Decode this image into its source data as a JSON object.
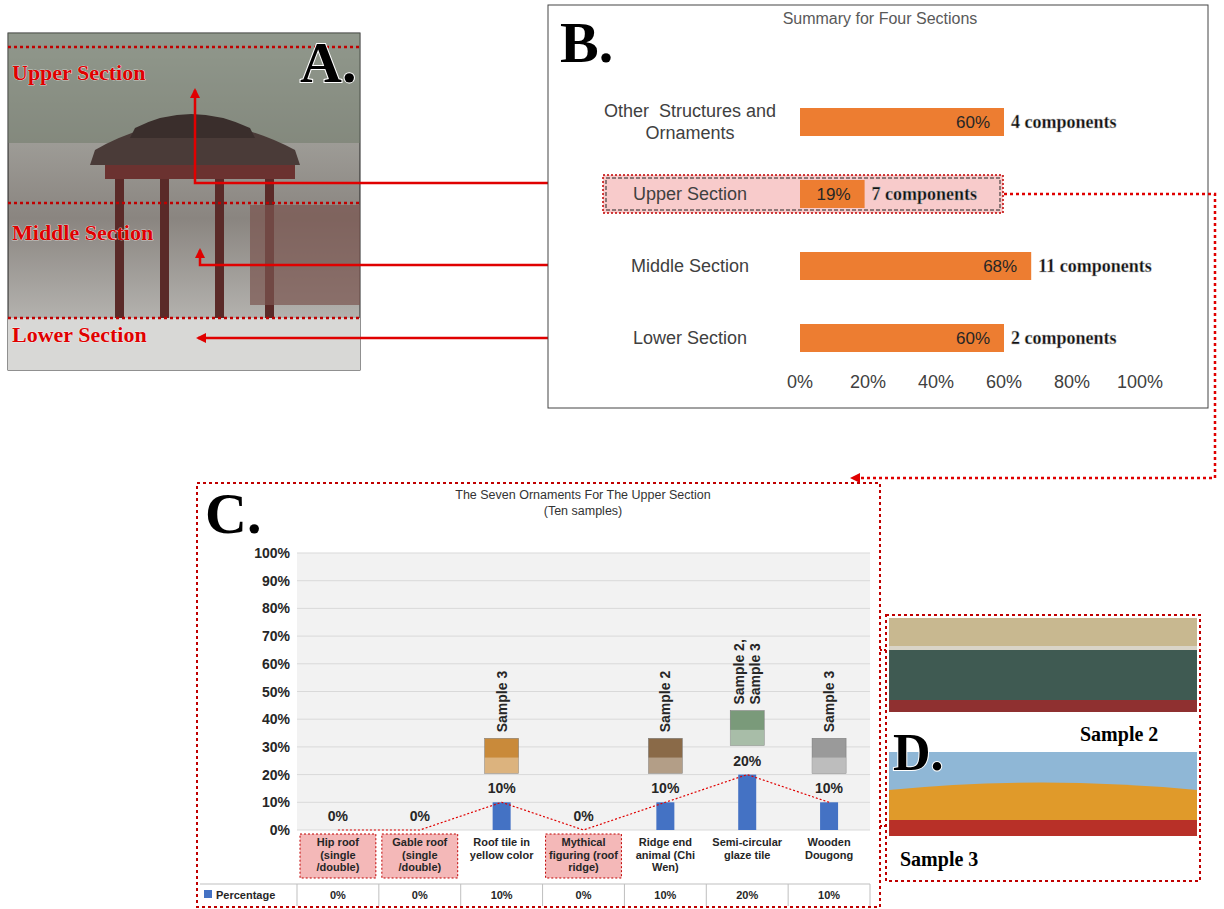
{
  "panel_letters": [
    "A.",
    "B.",
    "C.",
    "D."
  ],
  "photo_a": {
    "labels": [
      "Upper Section",
      "Middle Section",
      "Lower Section"
    ]
  },
  "photo_d": {
    "labels": [
      "Sample 2",
      "Sample 3"
    ]
  },
  "chart_data": [
    {
      "type": "bar",
      "orientation": "horizontal",
      "title": "Summary for Four Sections",
      "categories": [
        "Other  Structures and Ornaments",
        "Upper Section",
        "Middle Section",
        "Lower Section"
      ],
      "values": [
        60,
        19,
        68,
        60
      ],
      "value_labels": [
        "60%",
        "19%",
        "68%",
        "60%"
      ],
      "annotations": [
        "4 components",
        "7 components",
        "11 components",
        "2 components"
      ],
      "color": "#ed7d31",
      "xlim": [
        0,
        100
      ],
      "xticks": [
        {
          "value": 0,
          "label": "0%"
        },
        {
          "value": 20,
          "label": "20%"
        },
        {
          "value": 40,
          "label": "40%"
        },
        {
          "value": 60,
          "label": "60%"
        },
        {
          "value": 80,
          "label": "80%"
        },
        {
          "value": 100,
          "label": "100%"
        }
      ],
      "grid": false,
      "data_labels": true
    },
    {
      "type": "bar",
      "title": "The Seven Ornaments For The Upper Section",
      "subtitle": "(Ten samples)",
      "categories": [
        "Hip roof (single /double)",
        "Gable roof (single /double)",
        "Roof tile in yellow color",
        "Mythical figuring (roof ridge)",
        "Ridge end animal (Chi Wen)",
        "Semi-circular glaze tile",
        "Wooden Dougong"
      ],
      "series": [
        {
          "name": "Percentage",
          "color": "#4472c4",
          "values": [
            0,
            0,
            10,
            0,
            10,
            20,
            10
          ],
          "value_labels": [
            "0%",
            "0%",
            "10%",
            "0%",
            "10%",
            "20%",
            "10%"
          ]
        }
      ],
      "annotations": [
        null,
        null,
        "Sample 3",
        null,
        "Sample 2",
        "Sample 2, Sample 3",
        "Sample 3"
      ],
      "ylim": [
        0,
        100
      ],
      "yticks": [
        {
          "value": 0,
          "label": "0%"
        },
        {
          "value": 10,
          "label": "10%"
        },
        {
          "value": 20,
          "label": "20%"
        },
        {
          "value": 30,
          "label": "30%"
        },
        {
          "value": 40,
          "label": "40%"
        },
        {
          "value": 50,
          "label": "50%"
        },
        {
          "value": 60,
          "label": "60%"
        },
        {
          "value": 70,
          "label": "70%"
        },
        {
          "value": 80,
          "label": "80%"
        },
        {
          "value": 90,
          "label": "90%"
        },
        {
          "value": 100,
          "label": "100%"
        }
      ],
      "grid": true,
      "data_labels": true
    }
  ]
}
